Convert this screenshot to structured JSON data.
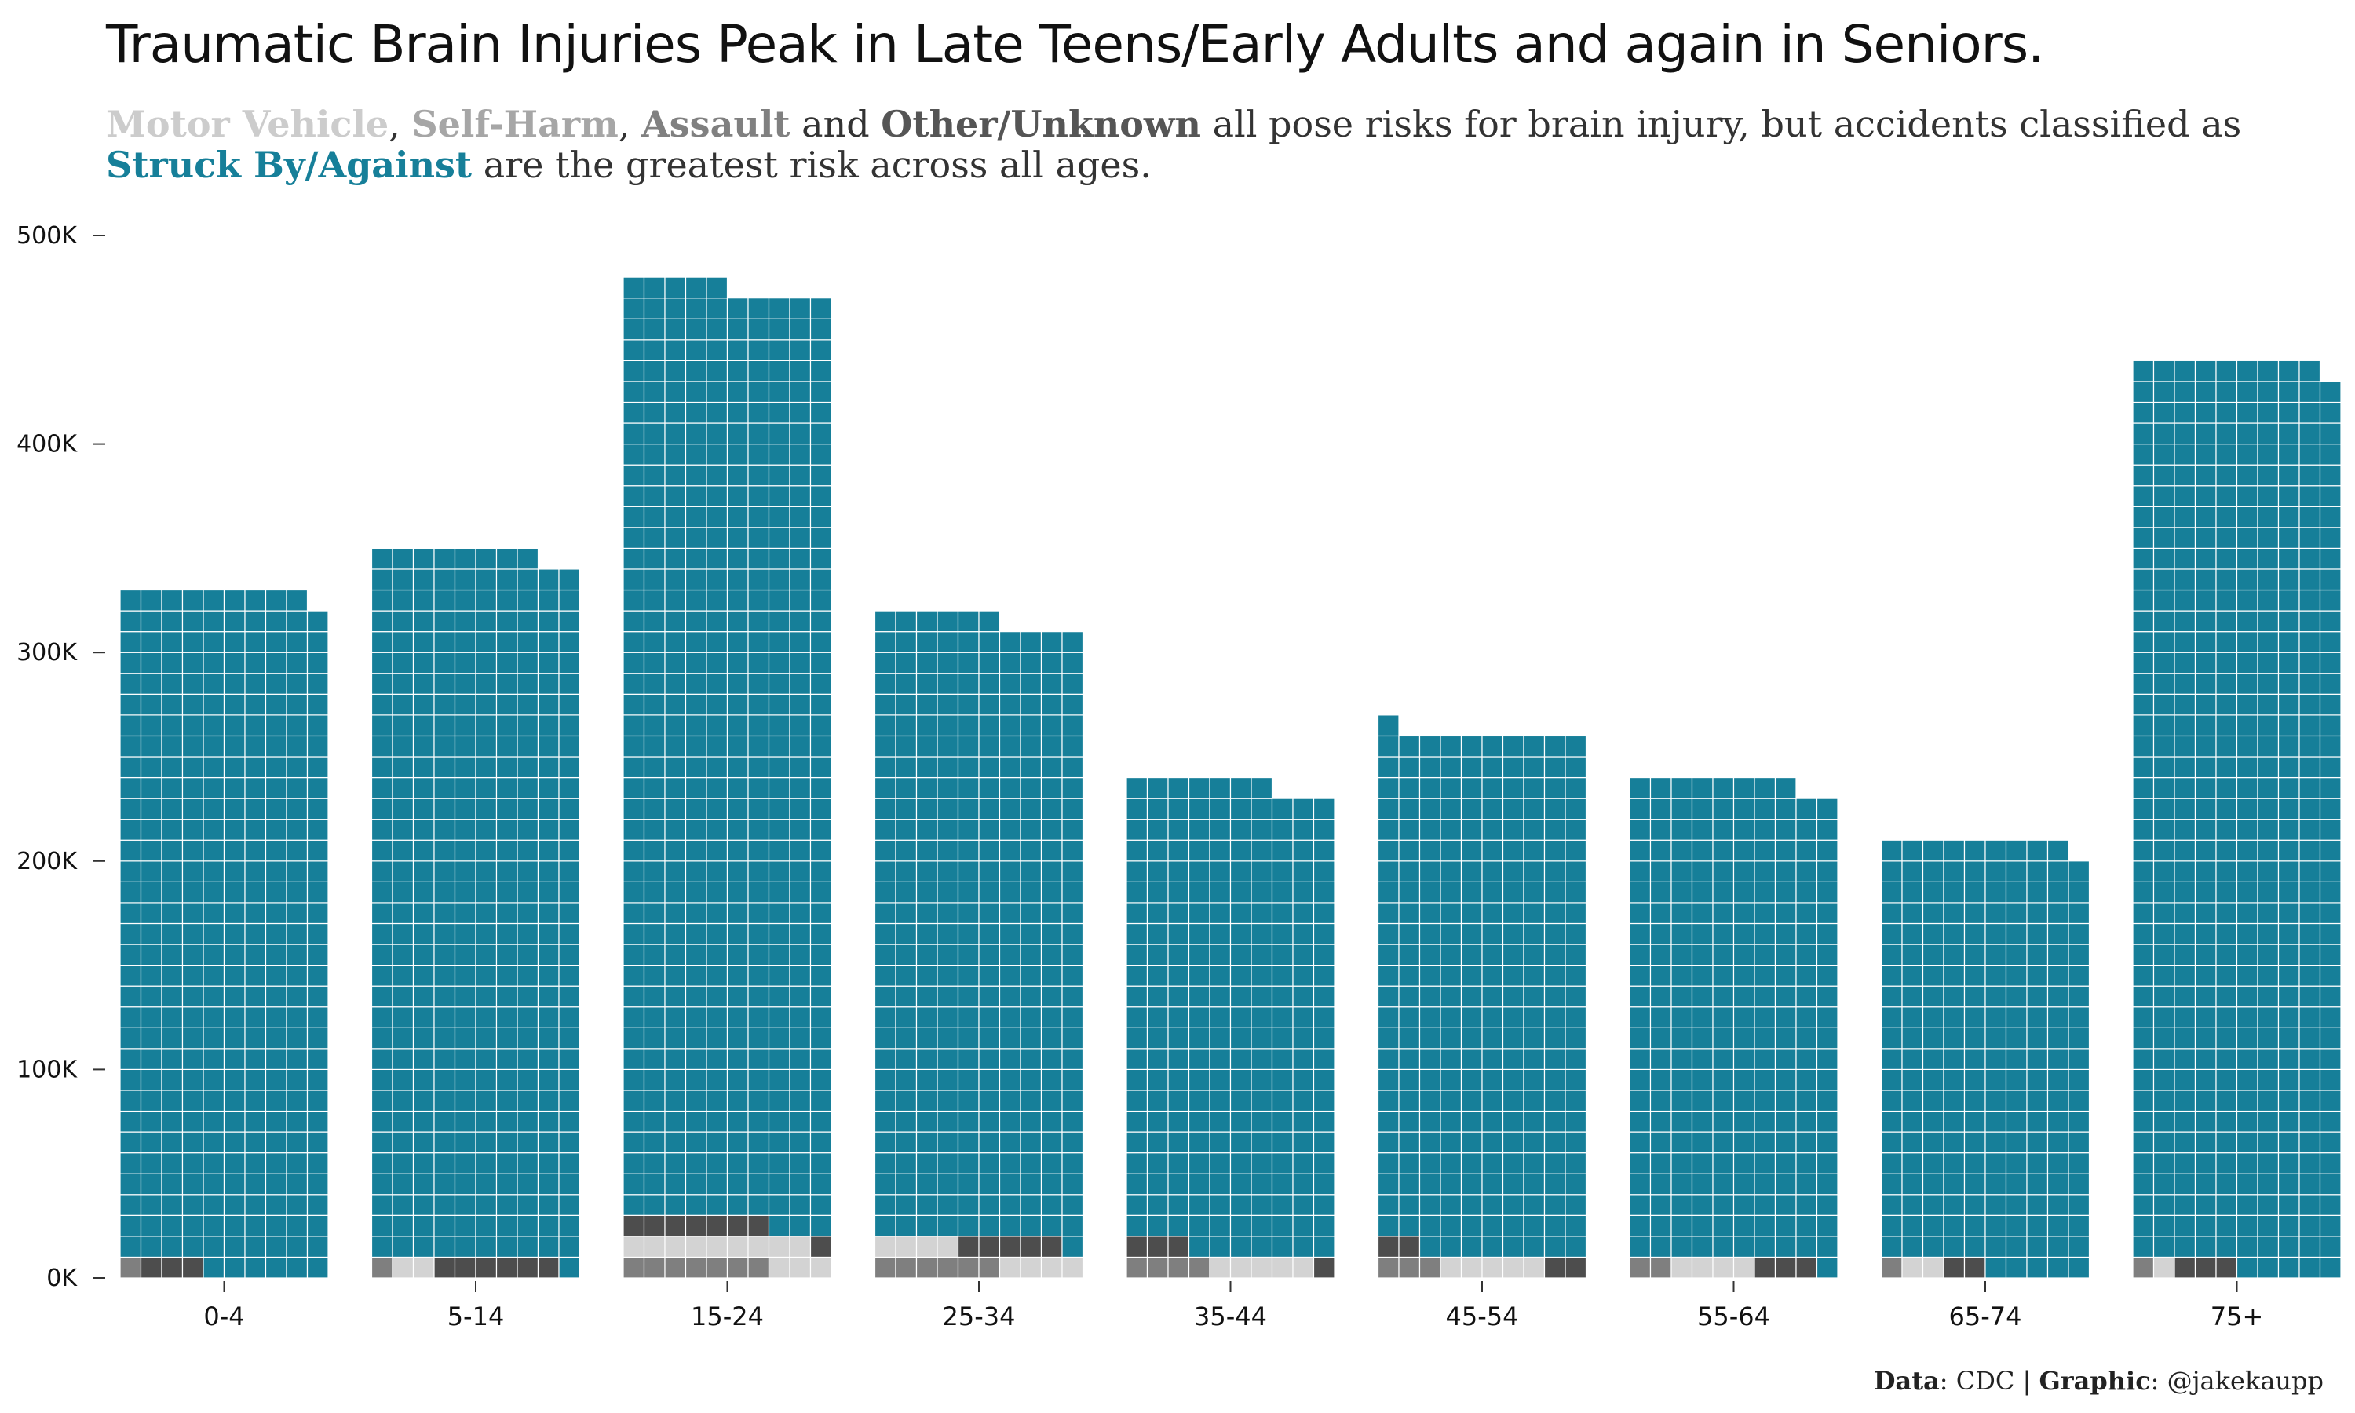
{
  "title": "Traumatic Brain Injuries Peak in Late Teens/Early Adults and again in Seniors.",
  "subtitle": {
    "motor_vehicle": "Motor Vehicle",
    "sep1": ", ",
    "self_harm": "Self-Harm",
    "sep2": ", ",
    "assault": "Assault",
    "and": " and ",
    "other_unknown": "Other/Unknown",
    "text1": " all pose risks for brain injury, but accidents classified as ",
    "struck_by": "Struck By/Against",
    "text2": " are the greatest risk across all ages."
  },
  "credit": {
    "data_label": "Data",
    "data_value": ": CDC | ",
    "graphic_label": "Graphic",
    "graphic_value": ": @jakekaupp"
  },
  "chart_data": {
    "type": "bar",
    "stacked": true,
    "style": "waffle",
    "categories": [
      "0-4",
      "5-14",
      "15-24",
      "25-34",
      "35-44",
      "45-54",
      "55-64",
      "65-74",
      "75+"
    ],
    "series": [
      {
        "name": "Motor Vehicle",
        "color": "#7f7f7f",
        "values": [
          5000,
          10000,
          67000,
          64000,
          38000,
          34000,
          17000,
          8000,
          10000
        ]
      },
      {
        "name": "Self-Harm",
        "color": "#d3d3d3",
        "values": [
          4000,
          22000,
          122000,
          79000,
          53000,
          53000,
          35000,
          20000,
          10000
        ]
      },
      {
        "name": "Assault",
        "color": "#4d4d4d",
        "values": [
          30000,
          58000,
          77000,
          49000,
          37000,
          36000,
          29000,
          22000,
          30000
        ]
      },
      {
        "name": "Struck By/Against",
        "color": "#167f99",
        "values": [
          286000,
          255000,
          209000,
          123000,
          109000,
          143000,
          153000,
          158000,
          386000
        ]
      }
    ],
    "grid_totals": [
      [
        33,
        33,
        33,
        33,
        33,
        33,
        33,
        33,
        33,
        32
      ],
      [
        35,
        35,
        35,
        35,
        35,
        35,
        35,
        35,
        34,
        34
      ],
      [
        48,
        48,
        48,
        48,
        48,
        47,
        47,
        47,
        47,
        47
      ],
      [
        32,
        32,
        32,
        32,
        32,
        32,
        31,
        31,
        31,
        31
      ],
      [
        24,
        24,
        24,
        24,
        24,
        24,
        24,
        23,
        23,
        23
      ],
      [
        27,
        26,
        26,
        26,
        26,
        26,
        26,
        26,
        26,
        26
      ],
      [
        24,
        24,
        24,
        24,
        24,
        24,
        24,
        24,
        23,
        23
      ],
      [
        21,
        21,
        21,
        21,
        21,
        21,
        21,
        21,
        21,
        20
      ],
      [
        44,
        44,
        44,
        44,
        44,
        44,
        44,
        44,
        44,
        43
      ]
    ],
    "cell_value": 10000,
    "yticks": [
      0,
      100000,
      200000,
      300000,
      400000,
      500000
    ],
    "ytick_labels": [
      "0K",
      "100K",
      "200K",
      "300K",
      "400K",
      "500K"
    ],
    "ylim": [
      0,
      500000
    ],
    "xlabel": "",
    "ylabel": "",
    "grid": false,
    "legend": "none"
  }
}
